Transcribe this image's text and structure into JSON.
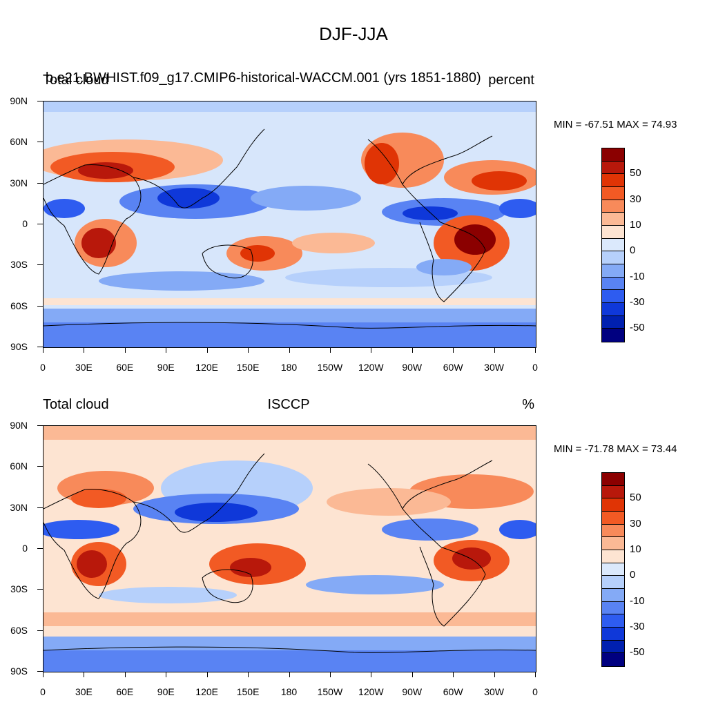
{
  "title": "DJF-JJA",
  "panels": [
    {
      "left_label": "Total cloud",
      "center_label": "",
      "right_label": "percent",
      "case_label": "b.e21.BWHIST.f09_g17.CMIP6-historical-WACCM.001 (yrs 1851-1880)",
      "minmax": "MIN = -67.51 MAX =  74.93"
    },
    {
      "left_label": "Total cloud",
      "center_label": "ISCCP",
      "right_label": "%",
      "case_label": "",
      "minmax": "MIN = -71.78 MAX =  73.44"
    }
  ],
  "lat_labels": [
    "90N",
    "60N",
    "30N",
    "0",
    "30S",
    "60S",
    "90S"
  ],
  "lon_labels": [
    "0",
    "30E",
    "60E",
    "90E",
    "120E",
    "150E",
    "180",
    "150W",
    "120W",
    "90W",
    "60W",
    "30W",
    "0"
  ],
  "colorbar": {
    "labels": [
      "50",
      "30",
      "10",
      "0",
      "-10",
      "-30",
      "-50"
    ],
    "colors": [
      "#8b0000",
      "#b8180b",
      "#e03405",
      "#f25a24",
      "#f88a5a",
      "#fbb995",
      "#fde4d2",
      "#dbe9fc",
      "#b6d0fb",
      "#84aaf6",
      "#5983f3",
      "#2e5cf0",
      "#0f38d9",
      "#0020b0",
      "#000080"
    ]
  },
  "colors": {
    "background_field": "#d7e6fb",
    "coastline": "#000000"
  }
}
